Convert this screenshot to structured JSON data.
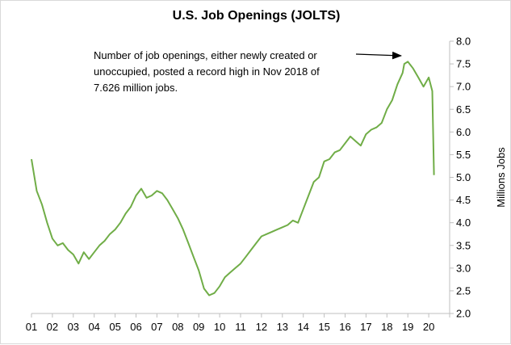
{
  "chart_data": {
    "type": "line",
    "title": "U.S. Job Openings (JOLTS)",
    "xlabel": "",
    "ylabel": "Millions Jobs",
    "ylim": [
      2.0,
      8.0
    ],
    "xlim": [
      2001,
      2021
    ],
    "x_tick_labels": [
      "01",
      "02",
      "03",
      "04",
      "05",
      "06",
      "07",
      "08",
      "09",
      "10",
      "11",
      "12",
      "13",
      "14",
      "15",
      "16",
      "17",
      "18",
      "19",
      "20"
    ],
    "y_tick_labels": [
      "2.0",
      "2.5",
      "3.0",
      "3.5",
      "4.0",
      "4.5",
      "5.0",
      "5.5",
      "6.0",
      "6.5",
      "7.0",
      "7.5",
      "8.0"
    ],
    "y_axis_side": "right",
    "grid": false,
    "line_color": "#70ad47",
    "annotation": {
      "lines": [
        "Number of job openings, either newly created or",
        "unoccupied, posted a record high in Nov 2018 of",
        "7.626 million jobs."
      ],
      "points_to": {
        "x": 2018.83,
        "y": 7.626
      }
    },
    "series": [
      {
        "x": [
          2001.0,
          2001.25,
          2001.5,
          2001.75,
          2002.0,
          2002.25,
          2002.5,
          2002.75,
          2003.0,
          2003.25,
          2003.5,
          2003.75,
          2004.0,
          2004.25,
          2004.5,
          2004.75,
          2005.0,
          2005.25,
          2005.5,
          2005.75,
          2006.0,
          2006.25,
          2006.5,
          2006.75,
          2007.0,
          2007.25,
          2007.5,
          2007.75,
          2008.0,
          2008.25,
          2008.5,
          2008.75,
          2009.0,
          2009.25,
          2009.5,
          2009.75,
          2010.0,
          2010.25,
          2010.5,
          2010.75,
          2011.0,
          2011.25,
          2011.5,
          2011.75,
          2012.0,
          2012.25,
          2012.5,
          2012.75,
          2013.0,
          2013.25,
          2013.5,
          2013.75,
          2014.0,
          2014.25,
          2014.5,
          2014.75,
          2015.0,
          2015.25,
          2015.5,
          2015.75,
          2016.0,
          2016.25,
          2016.5,
          2016.75,
          2017.0,
          2017.25,
          2017.5,
          2017.75,
          2018.0,
          2018.25,
          2018.5,
          2018.75,
          2018.83,
          2019.0,
          2019.25,
          2019.5,
          2019.75,
          2020.0,
          2020.17,
          2020.25
        ],
        "values": [
          5.4,
          4.7,
          4.4,
          4.0,
          3.65,
          3.5,
          3.55,
          3.4,
          3.3,
          3.1,
          3.35,
          3.2,
          3.35,
          3.5,
          3.6,
          3.75,
          3.85,
          4.0,
          4.2,
          4.35,
          4.6,
          4.75,
          4.55,
          4.6,
          4.7,
          4.65,
          4.5,
          4.3,
          4.1,
          3.85,
          3.55,
          3.25,
          2.95,
          2.55,
          2.4,
          2.45,
          2.6,
          2.8,
          2.9,
          3.0,
          3.1,
          3.25,
          3.4,
          3.55,
          3.7,
          3.75,
          3.8,
          3.85,
          3.9,
          3.95,
          4.05,
          4.0,
          4.3,
          4.6,
          4.9,
          5.0,
          5.35,
          5.4,
          5.55,
          5.6,
          5.75,
          5.9,
          5.8,
          5.7,
          5.95,
          6.05,
          6.1,
          6.2,
          6.5,
          6.7,
          7.05,
          7.3,
          7.5,
          7.55,
          7.4,
          7.2,
          7.0,
          7.2,
          6.9,
          5.05
        ]
      }
    ]
  }
}
